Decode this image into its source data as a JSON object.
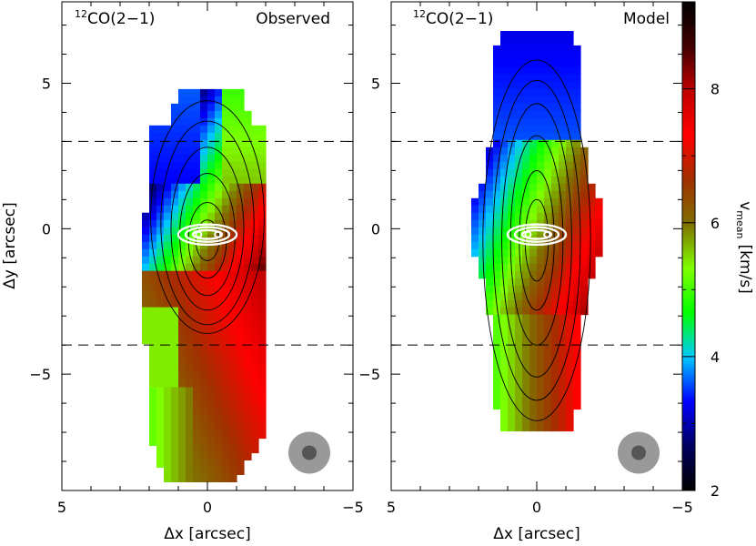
{
  "chart_data": [
    {
      "type": "heatmap",
      "label": "¹²CO(2−1)",
      "label_sup": "12",
      "label_main": "CO(2−1)",
      "corner_label": "Observed",
      "xlabel": "Δx [arcsec]",
      "ylabel": "Δy [arcsec]",
      "xlim": [
        5,
        -5
      ],
      "ylim": [
        -9,
        7.8
      ],
      "xticks": [
        {
          "v": 5,
          "t": "5"
        },
        {
          "v": 0,
          "t": "0"
        },
        {
          "v": -5,
          "t": "−5"
        }
      ],
      "yticks": [
        {
          "v": 5,
          "t": "5"
        },
        {
          "v": 0,
          "t": "0"
        },
        {
          "v": -5,
          "t": "−5"
        }
      ],
      "dashed_lines_y": [
        3,
        -4
      ],
      "beam_center": [
        -3.5,
        -7.7
      ],
      "contours": "black and white contours of integrated intensity",
      "velocity_field_description": "blue (~3.5 km/s) to upper-left, green (~5.5 km/s) upper-right and lower-left, red (~7.5 km/s) right and south"
    },
    {
      "type": "heatmap",
      "label": "¹²CO(2−1)",
      "label_sup": "12",
      "label_main": "CO(2−1)",
      "corner_label": "Model",
      "xlabel": "Δx [arcsec]",
      "xlim": [
        5,
        -5
      ],
      "ylim": [
        -9,
        7.8
      ],
      "xticks": [
        {
          "v": 5,
          "t": "5"
        },
        {
          "v": 0,
          "t": "0"
        },
        {
          "v": -5,
          "t": "−5"
        }
      ],
      "yticks": [
        {
          "v": 5,
          "t": "5"
        },
        {
          "v": 0,
          "t": "0"
        },
        {
          "v": -5,
          "t": "−5"
        }
      ],
      "dashed_lines_y": [
        3,
        -4
      ],
      "beam_center": [
        -3.5,
        -7.7
      ]
    }
  ],
  "colorbar": {
    "label": "v",
    "label_sub": "mean",
    "label_units": "[km/s]",
    "min": 2,
    "max": 9.3,
    "ticks": [
      {
        "v": 8,
        "t": "8"
      },
      {
        "v": 6,
        "t": "6"
      },
      {
        "v": 4,
        "t": "4"
      },
      {
        "v": 2,
        "t": "2"
      }
    ],
    "stops": [
      "#000000",
      "#000060",
      "#0000ff",
      "#00c8ff",
      "#00ff00",
      "#80ff00",
      "#807000",
      "#a03000",
      "#ff0000",
      "#c00000",
      "#400000",
      "#000000"
    ]
  }
}
